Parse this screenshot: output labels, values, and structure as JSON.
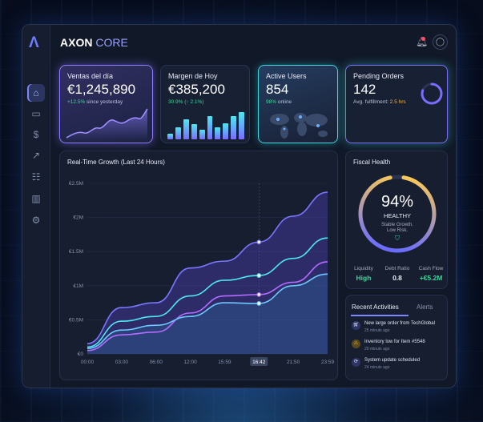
{
  "app": {
    "brand_main": "AXON",
    "brand_sub": "CORE"
  },
  "sidebar": {
    "items": [
      {
        "icon": "home-icon",
        "active": true
      },
      {
        "icon": "wallet-icon"
      },
      {
        "icon": "dollar-icon"
      },
      {
        "icon": "growth-chart-icon"
      },
      {
        "icon": "hierarchy-icon"
      },
      {
        "icon": "bar-chart-icon"
      },
      {
        "icon": "gear-icon"
      }
    ]
  },
  "header": {
    "notification": "bell-icon",
    "user": "user-icon"
  },
  "cards": [
    {
      "title": "Ventas del día",
      "value": "€1,245,890",
      "change": "+12.5%",
      "change_suffix": "since yesterday"
    },
    {
      "title": "Margen de Hoy",
      "value": "€385,200",
      "change": "30.9% (↑ 2.1%)",
      "bars": [
        0.2,
        0.45,
        0.75,
        0.55,
        0.35,
        0.85,
        0.45,
        0.6,
        0.85,
        1.0
      ]
    },
    {
      "title": "Active Users",
      "value": "854",
      "change": "98%",
      "change_suffix": "online"
    },
    {
      "title": "Pending Orders",
      "value": "142",
      "sub_label": "Avg. fulfillment:",
      "sub_value": "2.5 hrs",
      "ring_percent": 80
    }
  ],
  "fiscal": {
    "title": "Fiscal Health",
    "percent": "94%",
    "status": "HEALTHY",
    "desc1": "Stable Growth.",
    "desc2": "Low Risk.",
    "gauge_value": 94,
    "metrics": [
      {
        "label": "Liquidity",
        "value": "High"
      },
      {
        "label": "Debt Ratio",
        "value": "0.8"
      },
      {
        "label": "Cash Flow",
        "value": "+€5.2M"
      }
    ]
  },
  "activities": {
    "tabs": [
      "Recent Activities",
      "Alerts"
    ],
    "items": [
      {
        "icon": "cart-icon",
        "text": "New large order from TechGlobal",
        "time": "25 minuts ago"
      },
      {
        "icon": "warning-icon",
        "text": "Inventory low for Item #5548",
        "time": "29 minuts ago"
      },
      {
        "icon": "sync-icon",
        "text": "System update scheduled",
        "time": "24 minuts ago"
      }
    ]
  },
  "chart_data": {
    "type": "line",
    "title": "Real-Time Growth (Last 24 Hours)",
    "categories": [
      "00:00",
      "03:00",
      "06:00",
      "12:00",
      "15:59",
      "16:42",
      "21:50",
      "23:59"
    ],
    "highlight": "16:42",
    "ylim": [
      0,
      2500000
    ],
    "yticks": [
      "€0",
      "€0.5M",
      "€1M",
      "€1.5M",
      "€2M",
      "€2.5M"
    ],
    "series": [
      {
        "color": "#7a76ff",
        "values": [
          0.15,
          0.68,
          0.75,
          1.26,
          1.36,
          1.64,
          2.02,
          2.37
        ]
      },
      {
        "color": "#4de8f0",
        "values": [
          0.1,
          0.48,
          0.55,
          0.85,
          1.08,
          1.15,
          1.4,
          1.7
        ]
      },
      {
        "color": "#b46cff",
        "values": [
          0.05,
          0.28,
          0.32,
          0.6,
          0.85,
          0.87,
          1.05,
          1.35
        ]
      },
      {
        "color": "#6cc8ff",
        "values": [
          0.08,
          0.35,
          0.42,
          0.55,
          0.75,
          0.74,
          1.0,
          1.17
        ]
      }
    ]
  }
}
